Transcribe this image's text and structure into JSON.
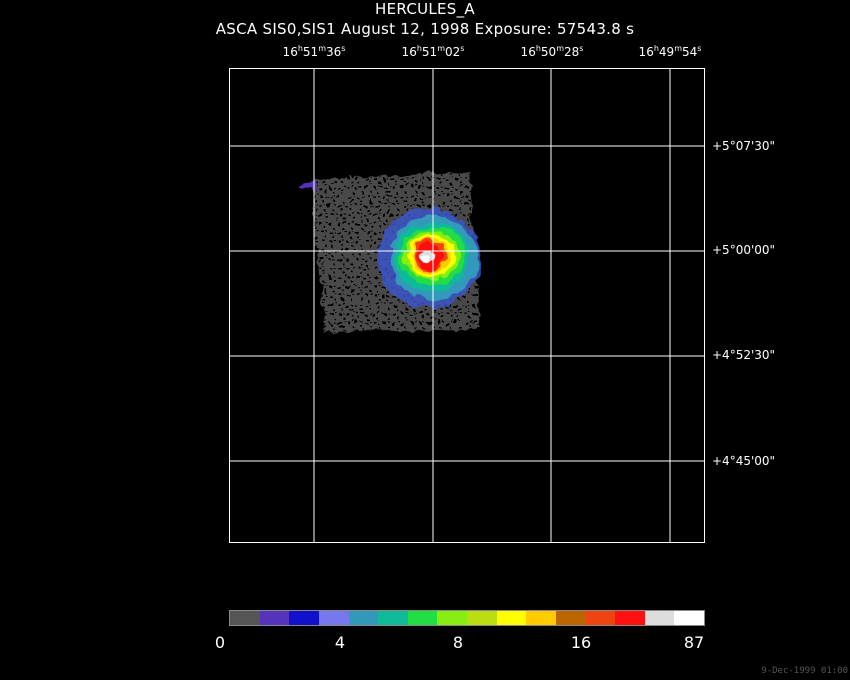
{
  "title": "HERCULES_A",
  "subtitle": "ASCA SIS0,SIS1 August 12, 1998 Exposure: 57543.8 s",
  "ra_labels": [
    {
      "h": "16",
      "m": "51",
      "s": "36"
    },
    {
      "h": "16",
      "m": "51",
      "s": "02"
    },
    {
      "h": "16",
      "m": "50",
      "s": "28"
    },
    {
      "h": "16",
      "m": "49",
      "s": "54"
    }
  ],
  "dec_labels": [
    "+5°07'30\"",
    "+5°00'00\"",
    "+4°52'30\"",
    "+4°45'00\""
  ],
  "colorbar": {
    "colors": [
      "#555555",
      "#5533bb",
      "#1111cc",
      "#7777ee",
      "#3399bb",
      "#11bb99",
      "#22dd44",
      "#88ee11",
      "#bbdd11",
      "#ffff00",
      "#ffcc00",
      "#bb6600",
      "#ee4411",
      "#ff1111",
      "#dddddd",
      "#ffffff"
    ],
    "tick_labels": [
      "0",
      "4",
      "8",
      "16",
      "87"
    ]
  },
  "timestamp": "9-Dec-1999 01:00"
}
